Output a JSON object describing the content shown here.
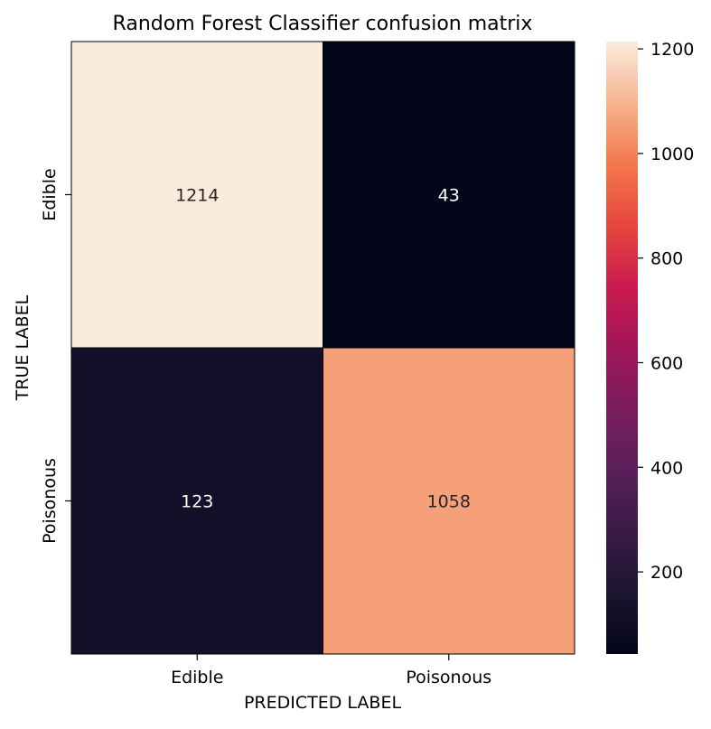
{
  "chart_data": {
    "type": "heatmap",
    "title": "Random Forest Classifier confusion matrix",
    "xlabel": "PREDICTED LABEL",
    "ylabel": "TRUE LABEL",
    "x_categories": [
      "Edible",
      "Poisonous"
    ],
    "y_categories": [
      "Edible",
      "Poisonous"
    ],
    "values": [
      [
        1214,
        43
      ],
      [
        123,
        1058
      ]
    ],
    "colorbar": {
      "min": 43,
      "max": 1214,
      "ticks": [
        200,
        400,
        600,
        800,
        1000,
        1200
      ],
      "tick_labels": [
        "200",
        "400",
        "600",
        "800",
        "1000",
        "1200"
      ],
      "colormap": "rocket"
    },
    "grid": false
  }
}
